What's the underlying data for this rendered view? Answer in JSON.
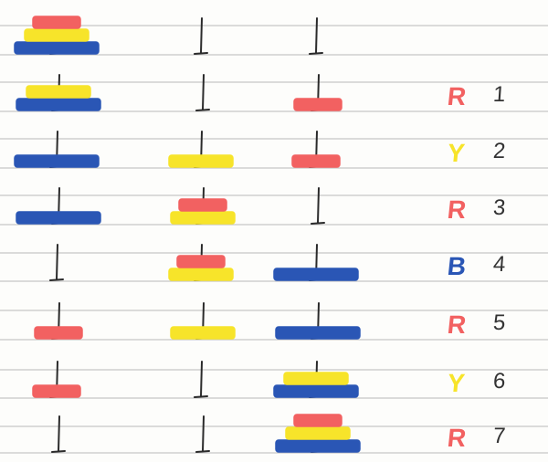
{
  "colors": {
    "red": "#f26161",
    "yellow": "#f7e42a",
    "blue": "#2a56b5",
    "peg": "#2b2b2b",
    "rule_line": "#c7c7c7",
    "number_ink": "#333333"
  },
  "disk_colors": {
    "1": "red",
    "2": "yellow",
    "3": "blue"
  },
  "initial_state": [
    [
      3,
      2,
      1
    ],
    [],
    []
  ],
  "moves": [
    {
      "step": 1,
      "label": "R",
      "color": "red"
    },
    {
      "step": 2,
      "label": "Y",
      "color": "yellow"
    },
    {
      "step": 3,
      "label": "R",
      "color": "red"
    },
    {
      "step": 4,
      "label": "B",
      "color": "blue"
    },
    {
      "step": 5,
      "label": "R",
      "color": "red"
    },
    {
      "step": 6,
      "label": "Y",
      "color": "yellow"
    },
    {
      "step": 7,
      "label": "R",
      "color": "red"
    }
  ],
  "states": [
    [
      [
        3,
        2,
        1
      ],
      [],
      []
    ],
    [
      [
        3,
        2
      ],
      [],
      [
        1
      ]
    ],
    [
      [
        3
      ],
      [
        2
      ],
      [
        1
      ]
    ],
    [
      [
        3
      ],
      [
        2,
        1
      ],
      []
    ],
    [
      [],
      [
        2,
        1
      ],
      [
        3
      ]
    ],
    [
      [
        1
      ],
      [
        2
      ],
      [
        3
      ]
    ],
    [
      [
        1
      ],
      [],
      [
        3,
        2
      ]
    ],
    [
      [],
      [],
      [
        3,
        2,
        1
      ]
    ]
  ]
}
